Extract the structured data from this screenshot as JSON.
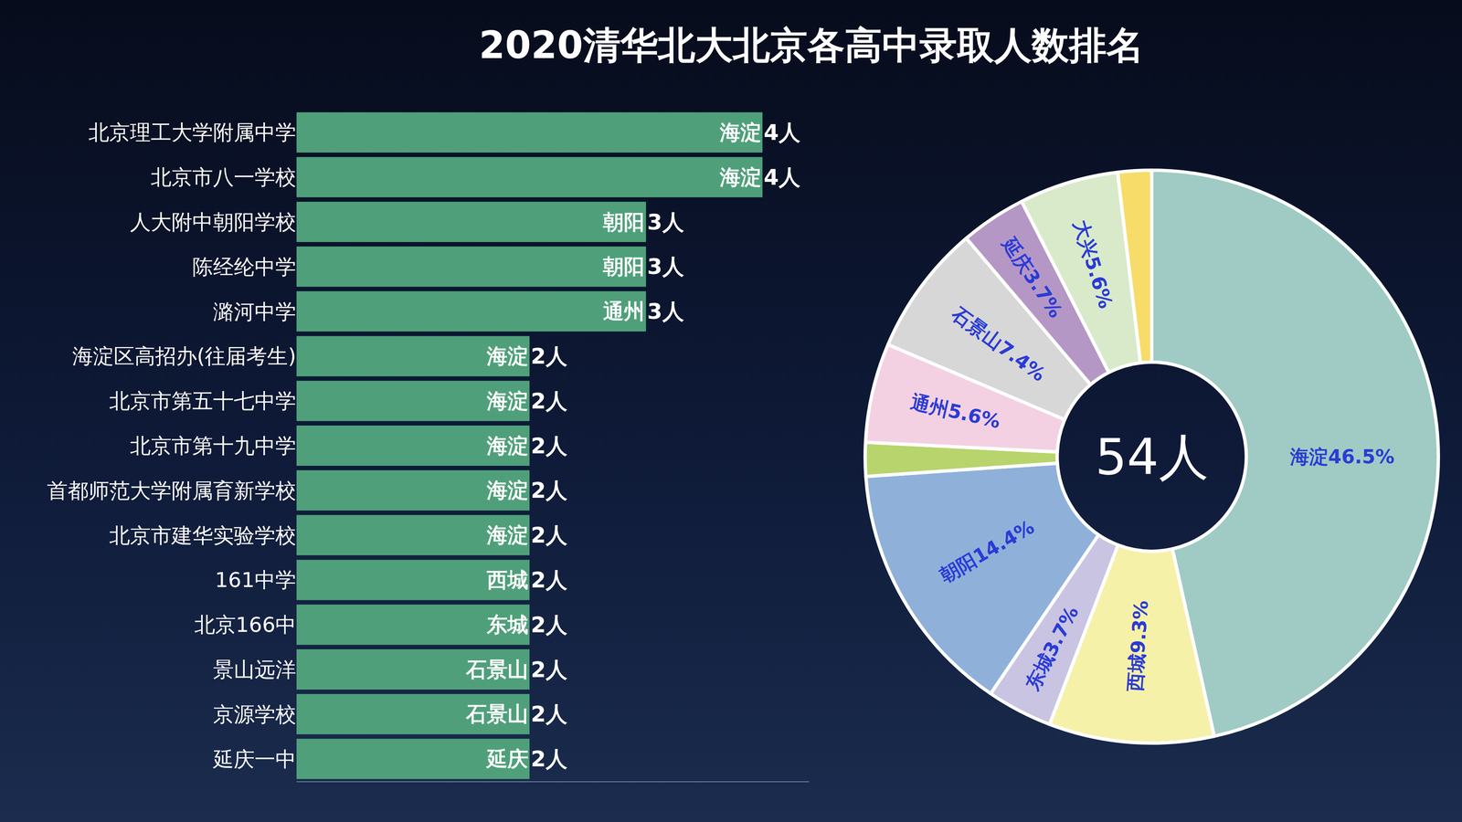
{
  "chart_data": [
    {
      "type": "bar",
      "title": "2020清华北大北京各高中录取人数排名",
      "orientation": "horizontal",
      "categories": [
        "北京理工大学附属中学",
        "北京市八一学校",
        "人大附中朝阳学校",
        "陈经纶中学",
        "潞河中学",
        "海淀区高招办(往届考生)",
        "北京市第五十七中学",
        "北京市第十九中学",
        "首都师范大学附属育新学校",
        "北京市建华实验学校",
        "161中学",
        "北京166中",
        "景山远洋",
        "京源学校",
        "延庆一中"
      ],
      "values": [
        4,
        4,
        3,
        3,
        3,
        2,
        2,
        2,
        2,
        2,
        2,
        2,
        2,
        2,
        2
      ],
      "value_labels": [
        "4人",
        "4人",
        "3人",
        "3人",
        "3人",
        "2人",
        "2人",
        "2人",
        "2人",
        "2人",
        "2人",
        "2人",
        "2人",
        "2人",
        "2人"
      ],
      "districts": [
        "海淀",
        "海淀",
        "朝阳",
        "朝阳",
        "通州",
        "海淀",
        "海淀",
        "海淀",
        "海淀",
        "海淀",
        "西城",
        "东城",
        "石景山",
        "石景山",
        "延庆"
      ],
      "color": "#4fa07a",
      "xlim": [
        0,
        4.4
      ],
      "xticks": [],
      "tick_labels": "y",
      "data_labels": true
    },
    {
      "type": "pie",
      "center_text": "54人",
      "categories": [
        "海淀",
        "西城",
        "东城",
        "朝阳",
        null,
        "通州",
        "石景山",
        "延庆",
        "大兴",
        null
      ],
      "values": [
        46.5,
        9.3,
        3.7,
        14.4,
        1.9,
        5.6,
        7.4,
        3.7,
        5.6,
        1.9
      ],
      "value_labels": [
        "46.5%",
        "9.3%",
        "3.7%",
        "14.4%",
        null,
        "5.6%",
        "7.4%",
        "3.7%",
        "5.6%",
        null
      ],
      "colors": [
        "#9fcbc4",
        "#f6f1a9",
        "#c9c4e2",
        "#8fb1d9",
        "#b8d46c",
        "#f3d1e2",
        "#d7d7d7",
        "#b597c6",
        "#d9eacb",
        "#f7dc6a"
      ],
      "data_labels": true
    }
  ]
}
